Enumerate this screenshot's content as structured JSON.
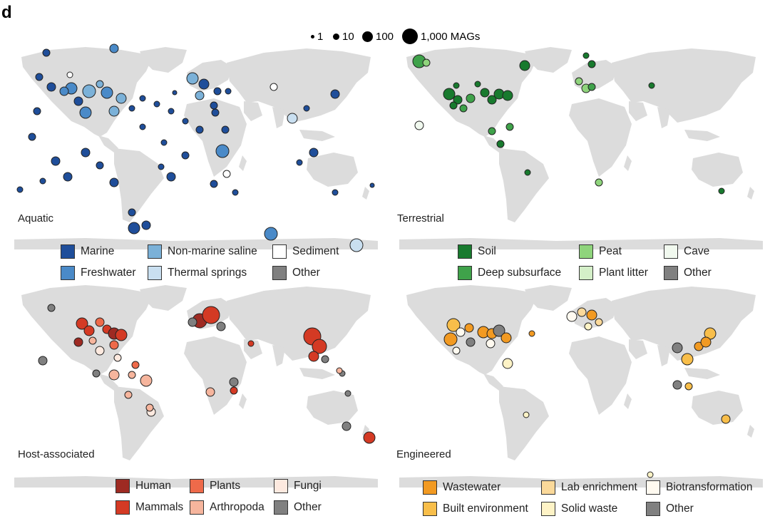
{
  "panel_letter": "d",
  "size_legend": {
    "items": [
      {
        "label": "1",
        "r": 2.5
      },
      {
        "label": "10",
        "r": 4.5
      },
      {
        "label": "100",
        "r": 7.5
      },
      {
        "label": "1,000 MAGs",
        "r": 11
      }
    ]
  },
  "colors": {
    "land": "#dcdcdc"
  },
  "panels": [
    {
      "id": "aquatic",
      "title": "Aquatic",
      "legend": [
        {
          "label": "Marine",
          "color": "#1f4e9a"
        },
        {
          "label": "Non-marine saline",
          "color": "#7bb1d8"
        },
        {
          "label": "Sediment",
          "color": "#ffffff"
        },
        {
          "label": "Freshwater",
          "color": "#4a8ac8"
        },
        {
          "label": "Thermal springs",
          "color": "#c9dff0"
        },
        {
          "label": "Other",
          "color": "#808080"
        }
      ]
    },
    {
      "id": "terrestrial",
      "title": "Terrestrial",
      "legend": [
        {
          "label": "Soil",
          "color": "#187a2e"
        },
        {
          "label": "Peat",
          "color": "#8fd47c"
        },
        {
          "label": "Cave",
          "color": "#f1f9ef"
        },
        {
          "label": "Deep subsurface",
          "color": "#3fa24a"
        },
        {
          "label": "Plant litter",
          "color": "#d4efc8"
        },
        {
          "label": "Other",
          "color": "#808080"
        }
      ]
    },
    {
      "id": "host",
      "title": "Host-associated",
      "legend": [
        {
          "label": "Human",
          "color": "#9e2a22"
        },
        {
          "label": "Plants",
          "color": "#ee6a4a"
        },
        {
          "label": "Fungi",
          "color": "#fde9df"
        },
        {
          "label": "Mammals",
          "color": "#d43a24"
        },
        {
          "label": "Arthropoda",
          "color": "#f6b59d"
        },
        {
          "label": "Other",
          "color": "#808080"
        }
      ]
    },
    {
      "id": "engineered",
      "title": "Engineered",
      "legend": [
        {
          "label": "Wastewater",
          "color": "#f29a22"
        },
        {
          "label": "Lab enrichment",
          "color": "#fbd99a"
        },
        {
          "label": "Biotransformation",
          "color": "#fffaf0"
        },
        {
          "label": "Built environment",
          "color": "#f8be4a"
        },
        {
          "label": "Solid waste",
          "color": "#fef3c6"
        },
        {
          "label": "Other",
          "color": "#808080"
        }
      ]
    }
  ]
}
